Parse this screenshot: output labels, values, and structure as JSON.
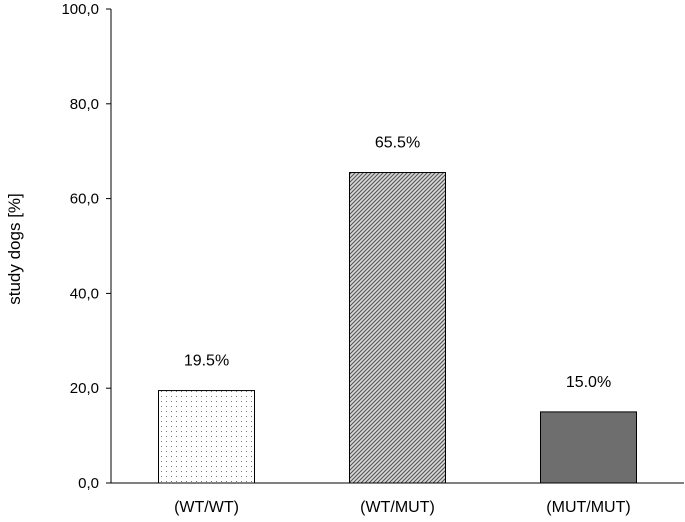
{
  "chart_data": {
    "type": "bar",
    "title": "",
    "xlabel": "",
    "ylabel": "study dogs [%]",
    "ylim": [
      0,
      100
    ],
    "yticks": [
      0,
      20,
      40,
      60,
      80,
      100
    ],
    "ytick_labels": [
      "0,0",
      "20,0",
      "40,0",
      "60,0",
      "80,0",
      "100,0"
    ],
    "categories": [
      "(WT/WT)",
      "(WT/MUT)",
      "(MUT/MUT)"
    ],
    "values": [
      19.5,
      65.5,
      15.0
    ],
    "data_labels": [
      "19.5%",
      "65.5%",
      "15.0%"
    ],
    "bar_fills": [
      "dotted",
      "diagonal-hatch",
      "solid"
    ],
    "colors": {
      "solid_bar": "#6e6e6e",
      "dots": "#7a7a7a",
      "hatch": "#555555",
      "axis": "#000000"
    },
    "grid": false,
    "legend": "none"
  }
}
